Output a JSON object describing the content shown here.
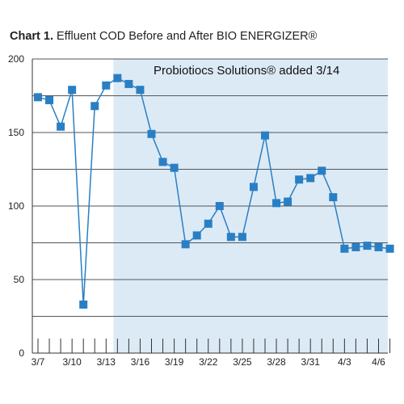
{
  "title": {
    "prefix": "Chart 1.",
    "text": "Effluent COD Before and After BIO ENERGIZER®"
  },
  "colors": {
    "series": "#2a7fc4",
    "shaded_region": "#dceaf6",
    "grid": "#555555"
  },
  "chart_data": {
    "type": "line",
    "title": "Chart 1. Effluent COD Before and After BIO ENERGIZER®",
    "xlabel": "",
    "ylabel": "",
    "ylim": [
      0,
      200
    ],
    "yticks": [
      0,
      50,
      100,
      150,
      200
    ],
    "grid": true,
    "x_tick_labels": [
      "3/7",
      "3/10",
      "3/13",
      "3/16",
      "3/19",
      "3/22",
      "3/25",
      "3/28",
      "3/31",
      "4/3",
      "4/6"
    ],
    "x": [
      "3/7",
      "3/8",
      "3/9",
      "3/10",
      "3/11",
      "3/12",
      "3/13",
      "3/14",
      "3/15",
      "3/16",
      "3/17",
      "3/18",
      "3/19",
      "3/20",
      "3/21",
      "3/22",
      "3/23",
      "3/24",
      "3/25",
      "3/26",
      "3/27",
      "3/28",
      "3/29",
      "3/30",
      "3/31",
      "4/1",
      "4/2",
      "4/3",
      "4/4",
      "4/5",
      "4/6",
      "4/7"
    ],
    "series": [
      {
        "values": [
          174,
          172,
          154,
          179,
          33,
          168,
          182,
          187,
          183,
          179,
          149,
          130,
          126,
          74,
          80,
          88,
          100,
          79,
          79,
          113,
          148,
          102,
          103,
          118,
          119,
          124,
          106,
          71,
          72,
          73,
          72,
          71
        ]
      }
    ],
    "shaded_region_start": "3/14",
    "annotation": "Probiotiocs Solutions® added 3/14"
  }
}
